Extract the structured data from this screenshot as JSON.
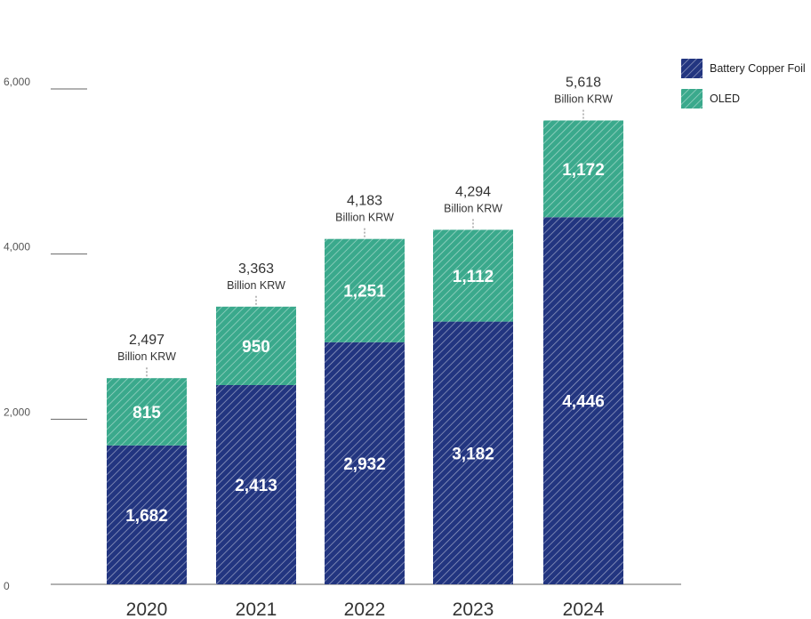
{
  "chart_data": {
    "type": "bar",
    "stacked": true,
    "categories": [
      "2020",
      "2021",
      "2022",
      "2023",
      "2024"
    ],
    "series": [
      {
        "name": "Battery Copper Foil",
        "values": [
          1682,
          2413,
          2932,
          3182,
          4446
        ],
        "color": "#223580",
        "pattern": "diagonal-hatch"
      },
      {
        "name": "OLED",
        "values": [
          815,
          950,
          1251,
          1112,
          1172
        ],
        "color": "#3aa98c",
        "pattern": "diagonal-hatch"
      }
    ],
    "totals": [
      "2,497",
      "3,363",
      "4,183",
      "4,294",
      "5,618"
    ],
    "value_labels": {
      "Battery Copper Foil": [
        "1,682",
        "2,413",
        "2,932",
        "3,182",
        "4,446"
      ],
      "OLED": [
        "815",
        "950",
        "1,251",
        "1,112",
        "1,172"
      ]
    },
    "total_unit": "Billion KRW",
    "y_ticks": [
      {
        "value": 0,
        "label": "0"
      },
      {
        "value": 2000,
        "label": "2,000"
      },
      {
        "value": 4000,
        "label": "4,000"
      },
      {
        "value": 6000,
        "label": "6,000"
      }
    ],
    "ylim": [
      0,
      6000
    ],
    "grid": false,
    "legend": {
      "placement": "top-right"
    }
  }
}
